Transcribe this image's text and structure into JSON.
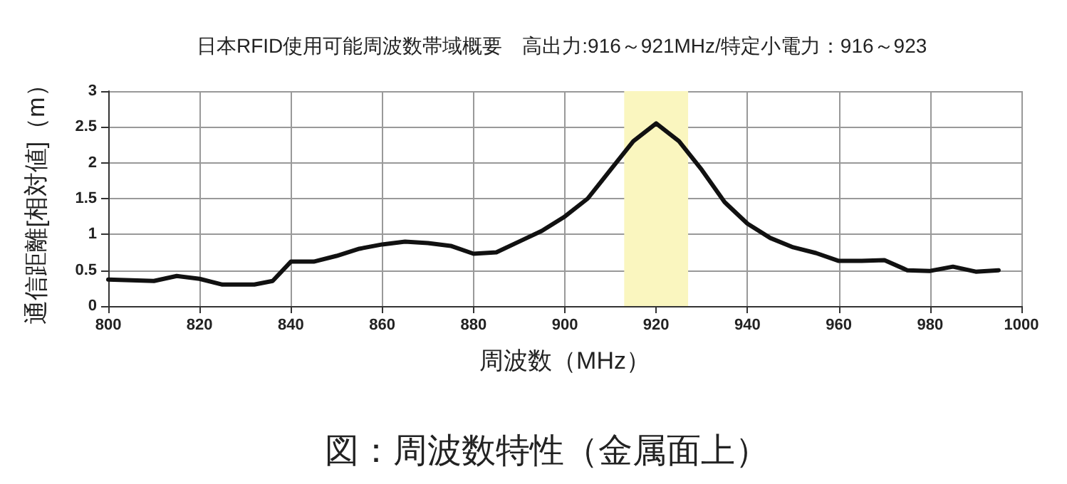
{
  "chart_data": {
    "type": "line",
    "title": "日本RFID使用可能周波数帯域概要　高出力:916～921MHz/特定小電力：916～923",
    "xlabel": "周波数（MHz）",
    "ylabel": "通信距離[相対値]（m）",
    "annotations": [
      "図：周波数特性（金属面上）"
    ],
    "x": [
      800,
      810,
      815,
      820,
      825,
      832,
      836,
      840,
      845,
      850,
      855,
      860,
      865,
      870,
      875,
      880,
      885,
      890,
      895,
      900,
      905,
      910,
      915,
      920,
      925,
      930,
      935,
      940,
      945,
      950,
      955,
      960,
      965,
      970,
      975,
      980,
      985,
      990,
      995
    ],
    "series": [
      {
        "color": "#111111",
        "values": [
          0.37,
          0.35,
          0.42,
          0.38,
          0.3,
          0.3,
          0.35,
          0.62,
          0.62,
          0.7,
          0.8,
          0.86,
          0.9,
          0.88,
          0.84,
          0.73,
          0.75,
          0.9,
          1.05,
          1.25,
          1.5,
          1.9,
          2.3,
          2.55,
          2.3,
          1.9,
          1.45,
          1.15,
          0.95,
          0.82,
          0.74,
          0.63,
          0.63,
          0.64,
          0.5,
          0.49,
          0.55,
          0.48,
          0.5
        ]
      }
    ],
    "bands": [
      {
        "axis": "x",
        "from": 913,
        "to": 927,
        "color": "#faf6bf"
      }
    ],
    "xlim": [
      800,
      1000
    ],
    "xticks": [
      800,
      820,
      840,
      860,
      880,
      900,
      920,
      940,
      960,
      980,
      1000
    ],
    "ylim": [
      0,
      3
    ],
    "yticks": [
      0,
      0.5,
      1,
      1.5,
      2,
      2.5,
      3
    ],
    "grid": true,
    "marker": "none",
    "line_style": "solid"
  }
}
